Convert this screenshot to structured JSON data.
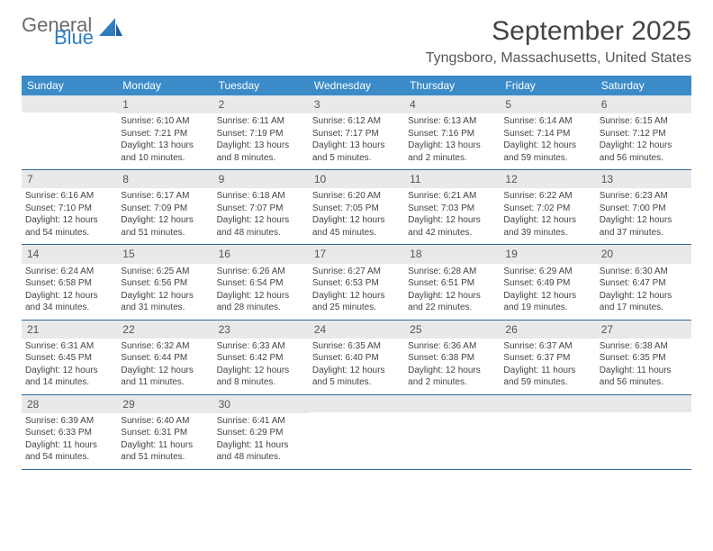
{
  "brand": {
    "word1": "General",
    "word2": "Blue"
  },
  "title": "September 2025",
  "location": "Tyngsboro, Massachusetts, United States",
  "header_bg": "#3b8bc9",
  "band_bg": "#e9e9e9",
  "rule_color": "#2f6b9e",
  "weekdays": [
    "Sunday",
    "Monday",
    "Tuesday",
    "Wednesday",
    "Thursday",
    "Friday",
    "Saturday"
  ],
  "first_weekday_index": 1,
  "days": [
    {
      "n": 1,
      "sr": "6:10 AM",
      "ss": "7:21 PM",
      "dl": "13 hours and 10 minutes."
    },
    {
      "n": 2,
      "sr": "6:11 AM",
      "ss": "7:19 PM",
      "dl": "13 hours and 8 minutes."
    },
    {
      "n": 3,
      "sr": "6:12 AM",
      "ss": "7:17 PM",
      "dl": "13 hours and 5 minutes."
    },
    {
      "n": 4,
      "sr": "6:13 AM",
      "ss": "7:16 PM",
      "dl": "13 hours and 2 minutes."
    },
    {
      "n": 5,
      "sr": "6:14 AM",
      "ss": "7:14 PM",
      "dl": "12 hours and 59 minutes."
    },
    {
      "n": 6,
      "sr": "6:15 AM",
      "ss": "7:12 PM",
      "dl": "12 hours and 56 minutes."
    },
    {
      "n": 7,
      "sr": "6:16 AM",
      "ss": "7:10 PM",
      "dl": "12 hours and 54 minutes."
    },
    {
      "n": 8,
      "sr": "6:17 AM",
      "ss": "7:09 PM",
      "dl": "12 hours and 51 minutes."
    },
    {
      "n": 9,
      "sr": "6:18 AM",
      "ss": "7:07 PM",
      "dl": "12 hours and 48 minutes."
    },
    {
      "n": 10,
      "sr": "6:20 AM",
      "ss": "7:05 PM",
      "dl": "12 hours and 45 minutes."
    },
    {
      "n": 11,
      "sr": "6:21 AM",
      "ss": "7:03 PM",
      "dl": "12 hours and 42 minutes."
    },
    {
      "n": 12,
      "sr": "6:22 AM",
      "ss": "7:02 PM",
      "dl": "12 hours and 39 minutes."
    },
    {
      "n": 13,
      "sr": "6:23 AM",
      "ss": "7:00 PM",
      "dl": "12 hours and 37 minutes."
    },
    {
      "n": 14,
      "sr": "6:24 AM",
      "ss": "6:58 PM",
      "dl": "12 hours and 34 minutes."
    },
    {
      "n": 15,
      "sr": "6:25 AM",
      "ss": "6:56 PM",
      "dl": "12 hours and 31 minutes."
    },
    {
      "n": 16,
      "sr": "6:26 AM",
      "ss": "6:54 PM",
      "dl": "12 hours and 28 minutes."
    },
    {
      "n": 17,
      "sr": "6:27 AM",
      "ss": "6:53 PM",
      "dl": "12 hours and 25 minutes."
    },
    {
      "n": 18,
      "sr": "6:28 AM",
      "ss": "6:51 PM",
      "dl": "12 hours and 22 minutes."
    },
    {
      "n": 19,
      "sr": "6:29 AM",
      "ss": "6:49 PM",
      "dl": "12 hours and 19 minutes."
    },
    {
      "n": 20,
      "sr": "6:30 AM",
      "ss": "6:47 PM",
      "dl": "12 hours and 17 minutes."
    },
    {
      "n": 21,
      "sr": "6:31 AM",
      "ss": "6:45 PM",
      "dl": "12 hours and 14 minutes."
    },
    {
      "n": 22,
      "sr": "6:32 AM",
      "ss": "6:44 PM",
      "dl": "12 hours and 11 minutes."
    },
    {
      "n": 23,
      "sr": "6:33 AM",
      "ss": "6:42 PM",
      "dl": "12 hours and 8 minutes."
    },
    {
      "n": 24,
      "sr": "6:35 AM",
      "ss": "6:40 PM",
      "dl": "12 hours and 5 minutes."
    },
    {
      "n": 25,
      "sr": "6:36 AM",
      "ss": "6:38 PM",
      "dl": "12 hours and 2 minutes."
    },
    {
      "n": 26,
      "sr": "6:37 AM",
      "ss": "6:37 PM",
      "dl": "11 hours and 59 minutes."
    },
    {
      "n": 27,
      "sr": "6:38 AM",
      "ss": "6:35 PM",
      "dl": "11 hours and 56 minutes."
    },
    {
      "n": 28,
      "sr": "6:39 AM",
      "ss": "6:33 PM",
      "dl": "11 hours and 54 minutes."
    },
    {
      "n": 29,
      "sr": "6:40 AM",
      "ss": "6:31 PM",
      "dl": "11 hours and 51 minutes."
    },
    {
      "n": 30,
      "sr": "6:41 AM",
      "ss": "6:29 PM",
      "dl": "11 hours and 48 minutes."
    }
  ],
  "labels": {
    "sunrise": "Sunrise:",
    "sunset": "Sunset:",
    "daylight": "Daylight:"
  }
}
